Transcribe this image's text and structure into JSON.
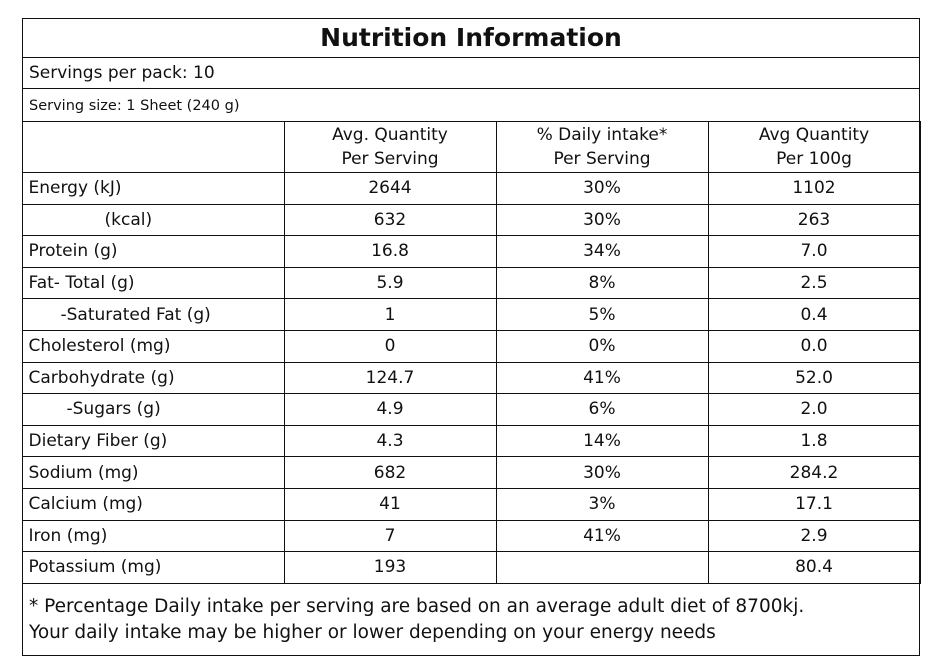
{
  "title": "Nutrition Information",
  "servings_per_pack": "Servings per pack: 10",
  "serving_size": "Serving size: 1 Sheet (240 g)",
  "columns": [
    {
      "line1": "",
      "line2": ""
    },
    {
      "line1": "Avg. Quantity",
      "line2": "Per Serving"
    },
    {
      "line1": "% Daily intake*",
      "line2": "Per Serving"
    },
    {
      "line1": "Avg Quantity",
      "line2": "Per 100g"
    }
  ],
  "rows": [
    {
      "label": "Energy  (kJ)",
      "per_serving": "2644",
      "daily": "30%",
      "per_100g": "1102"
    },
    {
      "label": "(kcal)",
      "per_serving": "632",
      "daily": "30%",
      "per_100g": "263"
    },
    {
      "label": "Protein  (g)",
      "per_serving": "16.8",
      "daily": "34%",
      "per_100g": "7.0"
    },
    {
      "label": "Fat- Total (g)",
      "per_serving": "5.9",
      "daily": "8%",
      "per_100g": "2.5"
    },
    {
      "label": "-Saturated Fat (g)",
      "per_serving": "1",
      "daily": "5%",
      "per_100g": "0.4"
    },
    {
      "label": "Cholesterol (mg)",
      "per_serving": "0",
      "daily": "0%",
      "per_100g": "0.0"
    },
    {
      "label": "Carbohydrate (g)",
      "per_serving": "124.7",
      "daily": "41%",
      "per_100g": "52.0"
    },
    {
      "label": "-Sugars (g)",
      "per_serving": "4.9",
      "daily": "6%",
      "per_100g": "2.0"
    },
    {
      "label": "Dietary Fiber (g)",
      "per_serving": "4.3",
      "daily": "14%",
      "per_100g": "1.8"
    },
    {
      "label": "Sodium (mg)",
      "per_serving": "682",
      "daily": "30%",
      "per_100g": "284.2"
    },
    {
      "label": "Calcium (mg)",
      "per_serving": "41",
      "daily": "3%",
      "per_100g": "17.1"
    },
    {
      "label": "Iron (mg)",
      "per_serving": "7",
      "daily": "41%",
      "per_100g": "2.9"
    },
    {
      "label": "Potassium (mg)",
      "per_serving": "193",
      "daily": "",
      "per_100g": "80.4"
    }
  ],
  "footnote": {
    "line1": "* Percentage Daily intake per serving are based on an average adult diet of 8700kj.",
    "line2": "Your daily intake may be higher or lower depending on your energy needs"
  }
}
